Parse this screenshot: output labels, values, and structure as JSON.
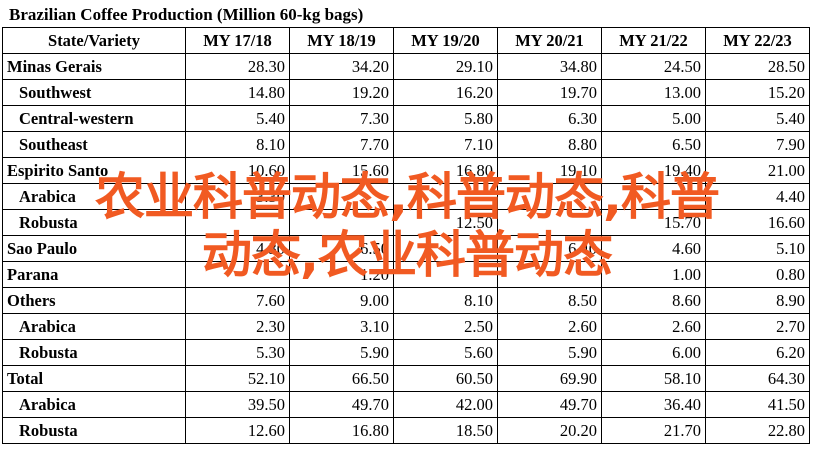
{
  "title": "Brazilian Coffee Production (Million 60-kg bags)",
  "headers": [
    "State/Variety",
    "MY 17/18",
    "MY 18/19",
    "MY 19/20",
    "MY 20/21",
    "MY 21/22",
    "MY 22/23"
  ],
  "rows": [
    {
      "label": "Minas Gerais",
      "sub": false,
      "values": [
        "28.30",
        "34.20",
        "29.10",
        "34.80",
        "24.50",
        "28.50"
      ]
    },
    {
      "label": "Southwest",
      "sub": true,
      "values": [
        "14.80",
        "19.20",
        "16.20",
        "19.70",
        "13.00",
        "15.20"
      ]
    },
    {
      "label": "Central-western",
      "sub": true,
      "values": [
        "5.40",
        "7.30",
        "5.80",
        "6.30",
        "5.00",
        "5.40"
      ]
    },
    {
      "label": "Southeast",
      "sub": true,
      "values": [
        "8.10",
        "7.70",
        "7.10",
        "8.80",
        "6.50",
        "7.90"
      ]
    },
    {
      "label": "Espirito Santo",
      "sub": false,
      "values": [
        "10.60",
        "15.60",
        "16.80",
        "19.10",
        "19.40",
        "21.00"
      ]
    },
    {
      "label": "Arabica",
      "sub": true,
      "values": [
        "3.30",
        "",
        "",
        "",
        "",
        "4.40"
      ]
    },
    {
      "label": "Robusta",
      "sub": true,
      "values": [
        "",
        "",
        "12.50",
        "",
        "15.70",
        "16.60"
      ]
    },
    {
      "label": "Sao Paulo",
      "sub": false,
      "values": [
        "4.30",
        "6.50",
        "",
        "6.40",
        "4.60",
        "5.10"
      ]
    },
    {
      "label": "Parana",
      "sub": false,
      "values": [
        "",
        "1.20",
        "",
        "",
        "1.00",
        "0.80"
      ]
    },
    {
      "label": "Others",
      "sub": false,
      "values": [
        "7.60",
        "9.00",
        "8.10",
        "8.50",
        "8.60",
        "8.90"
      ]
    },
    {
      "label": "Arabica",
      "sub": true,
      "values": [
        "2.30",
        "3.10",
        "2.50",
        "2.60",
        "2.60",
        "2.70"
      ]
    },
    {
      "label": "Robusta",
      "sub": true,
      "values": [
        "5.30",
        "5.90",
        "5.60",
        "5.90",
        "6.00",
        "6.20"
      ]
    },
    {
      "label": "Total",
      "sub": false,
      "values": [
        "52.10",
        "66.50",
        "60.50",
        "69.90",
        "58.10",
        "64.30"
      ]
    },
    {
      "label": "Arabica",
      "sub": true,
      "values": [
        "39.50",
        "49.70",
        "42.00",
        "49.70",
        "36.40",
        "41.50"
      ]
    },
    {
      "label": "Robusta",
      "sub": true,
      "values": [
        "12.60",
        "16.80",
        "18.50",
        "20.20",
        "21.70",
        "22.80"
      ]
    }
  ],
  "overlay": {
    "line1": "农业科普动态,科普动态,科普",
    "line2": "动态,农业科普动态",
    "color": "#f15a22"
  }
}
